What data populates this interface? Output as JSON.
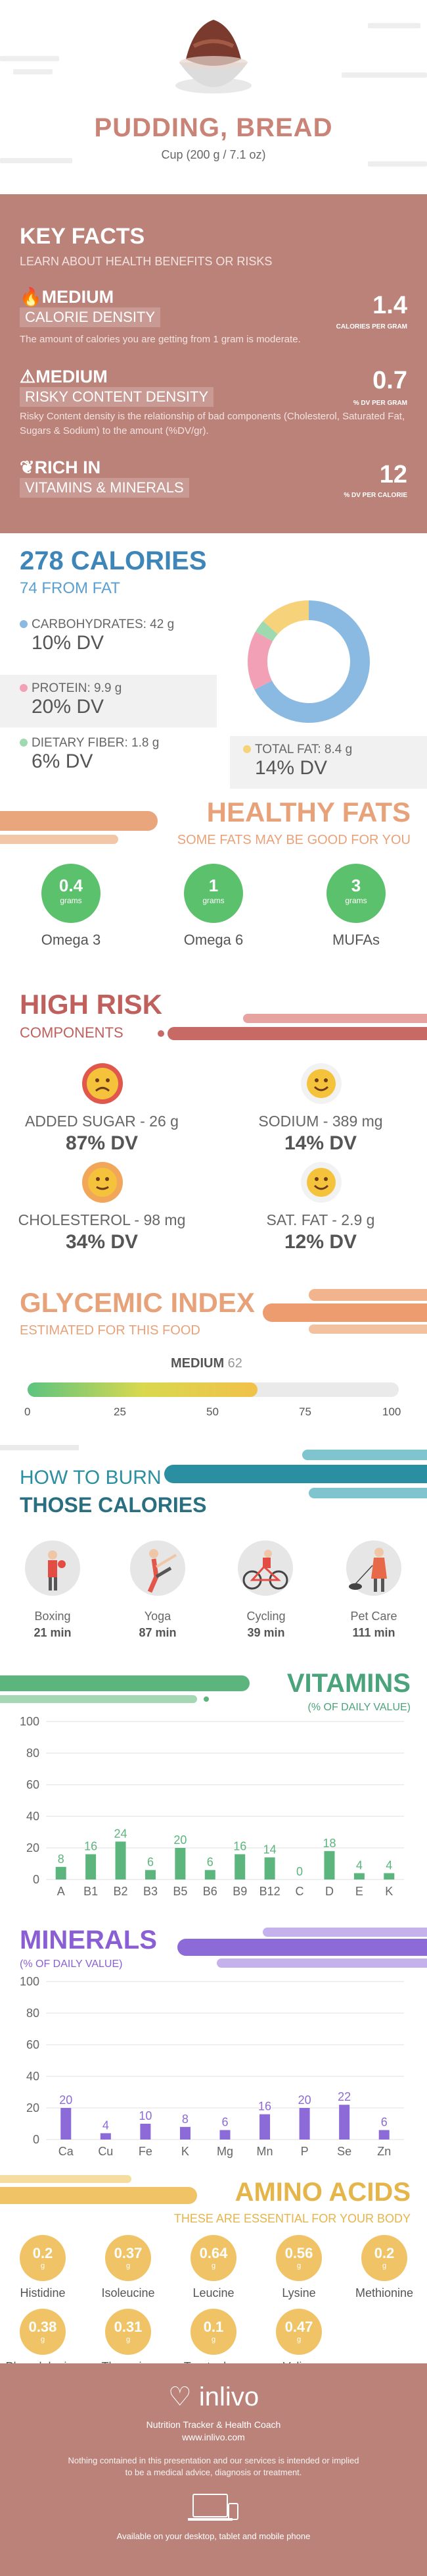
{
  "header": {
    "title": "PUDDING, BREAD",
    "serving": "Cup (200 g / 7.1 oz)"
  },
  "key_facts": {
    "title": "KEY FACTS",
    "subtitle": "LEARN ABOUT HEALTH BENEFITS OR RISKS",
    "items": [
      {
        "level": "MEDIUM",
        "tag": "CALORIE DENSITY",
        "desc": "The amount of calories you are getting from 1 gram is moderate.",
        "value": "1.4",
        "unit": "CALORIES PER GRAM",
        "icon": "flame-icon"
      },
      {
        "level": "MEDIUM",
        "tag": "RISKY CONTENT DENSITY",
        "desc": "Risky Content density is the relationship of bad components (Cholesterol, Saturated Fat, Sugars & Sodium) to the amount (%DV/gr).",
        "value": "0.7",
        "unit": "% DV PER GRAM",
        "icon": "warning-icon"
      },
      {
        "level": "RICH  IN",
        "tag": "VITAMINS & MINERALS",
        "desc": "",
        "value": "12",
        "unit": "% DV PER CALORIE",
        "icon": "leaf-icon"
      }
    ]
  },
  "calories": {
    "total": "278 CALORIES",
    "from_fat": "74 FROM FAT",
    "carbs_label": "CARBOHYDRATES: 42 g",
    "carbs_dv": "10% DV",
    "protein_label": "PROTEIN: 9.9 g",
    "protein_dv": "20% DV",
    "fiber_label": "DIETARY FIBER: 1.8 g",
    "fiber_dv": "6% DV",
    "fat_label": "TOTAL FAT: 8.4 g",
    "fat_dv": "14% DV",
    "donut": [
      {
        "name": "carbs",
        "value": 60,
        "color": "#8ab9e2"
      },
      {
        "name": "protein",
        "value": 14,
        "color": "#f2a0b5"
      },
      {
        "name": "fiber",
        "value": 3,
        "color": "#9fd9b0"
      },
      {
        "name": "fat",
        "value": 12,
        "color": "#f6d27a"
      }
    ]
  },
  "healthy_fats": {
    "title": "HEALTHY FATS",
    "subtitle": "SOME FATS MAY BE GOOD FOR YOU",
    "unit": "grams",
    "items": [
      {
        "value": "0.4",
        "name": "Omega 3"
      },
      {
        "value": "1",
        "name": "Omega 6"
      },
      {
        "value": "3",
        "name": "MUFAs"
      }
    ]
  },
  "high_risk": {
    "title": "HIGH RISK",
    "subtitle": "COMPONENTS",
    "items": [
      {
        "label": "ADDED SUGAR - 26 g",
        "dv": "87% DV",
        "face": "sad"
      },
      {
        "label": "SODIUM - 389 mg",
        "dv": "14% DV",
        "face": "happy"
      },
      {
        "label": "CHOLESTEROL - 98 mg",
        "dv": "34% DV",
        "face": "neutral"
      },
      {
        "label": "SAT. FAT - 2.9 g",
        "dv": "12% DV",
        "face": "happy"
      }
    ]
  },
  "glycemic": {
    "title": "GLYCEMIC INDEX",
    "subtitle": "ESTIMATED FOR THIS FOOD",
    "level": "MEDIUM",
    "value": "62",
    "fraction": 0.62,
    "ticks": [
      "0",
      "25",
      "50",
      "75",
      "100"
    ]
  },
  "burn": {
    "title1": "HOW TO BURN",
    "title2": "THOSE CALORIES",
    "items": [
      {
        "name": "Boxing",
        "minutes": "21 min",
        "icon": "boxing-icon"
      },
      {
        "name": "Yoga",
        "minutes": "87 min",
        "icon": "yoga-icon"
      },
      {
        "name": "Cycling",
        "minutes": "39 min",
        "icon": "cycling-icon"
      },
      {
        "name": "Pet Care",
        "minutes": "111 min",
        "icon": "pet-care-icon"
      }
    ]
  },
  "vitamins": {
    "title": "VITAMINS",
    "subtitle": "(% OF DAILY VALUE)"
  },
  "minerals": {
    "title": "MINERALS",
    "subtitle": "(% OF DAILY VALUE)"
  },
  "chart_data": [
    {
      "type": "bar",
      "title": "VITAMINS",
      "categories": [
        "A",
        "B1",
        "B2",
        "B3",
        "B5",
        "B6",
        "B9",
        "B12",
        "C",
        "D",
        "E",
        "K"
      ],
      "values": [
        8,
        16,
        24,
        6,
        20,
        6,
        16,
        14,
        0,
        18,
        4,
        4
      ],
      "ylim": [
        0,
        100
      ],
      "yticks": [
        "0",
        "20",
        "40",
        "60",
        "80",
        "100"
      ],
      "color": "#5cb57c"
    },
    {
      "type": "bar",
      "title": "MINERALS",
      "categories": [
        "Ca",
        "Cu",
        "Fe",
        "K",
        "Mg",
        "Mn",
        "P",
        "Se",
        "Zn"
      ],
      "values": [
        20,
        4,
        10,
        8,
        6,
        16,
        20,
        22,
        6
      ],
      "ylim": [
        0,
        100
      ],
      "yticks": [
        "0",
        "20",
        "40",
        "60",
        "80",
        "100"
      ],
      "color": "#8c6ad8"
    }
  ],
  "amino": {
    "title": "AMINO ACIDS",
    "subtitle": "THESE ARE ESSENTIAL FOR YOUR BODY",
    "unit": "g",
    "items": [
      {
        "value": "0.2",
        "name": "Histidine"
      },
      {
        "value": "0.37",
        "name": "Isoleucine"
      },
      {
        "value": "0.64",
        "name": "Leucine"
      },
      {
        "value": "0.56",
        "name": "Lysine"
      },
      {
        "value": "0.2",
        "name": "Methionine"
      },
      {
        "value": "0.38",
        "name": "Phenylalanine"
      },
      {
        "value": "0.31",
        "name": "Threonine"
      },
      {
        "value": "0.1",
        "name": "Tryptophan"
      },
      {
        "value": "0.47",
        "name": "Valine"
      }
    ]
  },
  "footer": {
    "brand": "inlivo",
    "tagline": "Nutrition Tracker & Health Coach",
    "url": "www.inlivo.com",
    "disclaimer1": "Nothing contained in this presentation and our services is intended or implied",
    "disclaimer2": "to be a medical advice, diagnosis or treatment.",
    "available": "Available on your desktop, tablet and mobile phone"
  }
}
